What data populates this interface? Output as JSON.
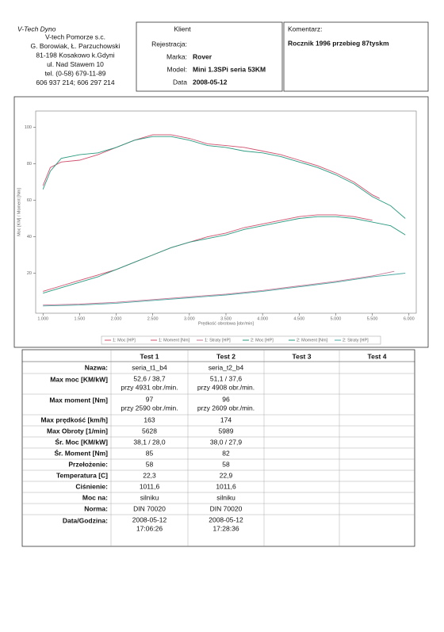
{
  "header": {
    "company": [
      "V-Tech Dyno",
      "V-tech Pomorze s.c.",
      "G. Borowiak, Ł. Parzuchowski",
      "81-198 Kosakowo k.Gdyni",
      "ul. Nad Stawem 10",
      "tel. (0-58) 679-11-89",
      "606 937 214; 606 297 214"
    ],
    "client_title": "Klient",
    "fields": [
      {
        "label": "Rejestracja:"
      },
      {
        "label": "Marka:",
        "value": "Rover"
      },
      {
        "label": "Model:",
        "value": "Mini 1.3SPi seria 53KM"
      },
      {
        "label": "Data",
        "value": "2008-05-12"
      }
    ],
    "comment_title": "Komentarz:",
    "comment": "Rocznik 1996 przebieg 87tyskm"
  },
  "chart_data": {
    "type": "line",
    "xlabel": "Prędkość obrotowa [obr/min]",
    "ylabel": "Moc [KM] / Moment [Nm]",
    "xlim": [
      900,
      6100
    ],
    "ylim": [
      -2,
      109
    ],
    "grid": false,
    "xticks": [
      {
        "value": 1000,
        "label": "1.000"
      },
      {
        "value": 1500,
        "label": "1.500"
      },
      {
        "value": 2000,
        "label": "2.000"
      },
      {
        "value": 2500,
        "label": "2.500"
      },
      {
        "value": 3000,
        "label": "3.000"
      },
      {
        "value": 3500,
        "label": "3.500"
      },
      {
        "value": 4000,
        "label": "4.000"
      },
      {
        "value": 4500,
        "label": "4.500"
      },
      {
        "value": 5000,
        "label": "5.000"
      },
      {
        "value": 5500,
        "label": "5.500"
      },
      {
        "value": 6000,
        "label": "6.000"
      }
    ],
    "yticks": [
      20,
      40,
      60,
      80,
      100
    ],
    "series": [
      {
        "name": "1: Moc [HP]",
        "color": "#d0506e",
        "x": [
          1000,
          1250,
          1500,
          1750,
          2000,
          2250,
          2500,
          2750,
          3000,
          3250,
          3500,
          3750,
          4000,
          4250,
          4500,
          4750,
          5000,
          5250,
          5500
        ],
        "values": [
          10,
          13,
          16,
          19,
          22,
          26,
          30,
          34,
          37,
          40,
          42,
          45,
          47,
          49,
          51,
          52,
          52,
          51,
          49
        ]
      },
      {
        "name": "1: Moment [Nm]",
        "color": "#d0506e",
        "x": [
          1000,
          1100,
          1250,
          1500,
          1750,
          2000,
          2250,
          2500,
          2750,
          3000,
          3250,
          3500,
          3750,
          4000,
          4250,
          4500,
          4750,
          5000,
          5250,
          5500,
          5600
        ],
        "values": [
          68,
          78,
          81,
          82,
          85,
          89,
          93,
          96,
          96,
          94,
          91,
          90,
          89,
          87,
          85,
          82,
          79,
          75,
          70,
          63,
          61
        ]
      },
      {
        "name": "1: Straty [HP]",
        "color": "#c77a9a",
        "x": [
          1000,
          1500,
          2000,
          2500,
          3000,
          3500,
          4000,
          4500,
          5000,
          5500,
          5800
        ],
        "values": [
          2.5,
          3,
          4,
          5.5,
          7,
          8.5,
          10.5,
          13,
          15.5,
          18.5,
          21
        ]
      },
      {
        "name": "2: Moc [HP]",
        "color": "#2a9a80",
        "x": [
          1000,
          1250,
          1500,
          1750,
          2000,
          2250,
          2500,
          2750,
          3000,
          3250,
          3500,
          3750,
          4000,
          4250,
          4500,
          4750,
          5000,
          5250,
          5500,
          5750,
          5950
        ],
        "values": [
          9,
          12,
          15,
          18,
          22,
          26,
          30,
          34,
          37,
          39,
          41,
          44,
          46,
          48,
          50,
          51,
          51,
          50,
          48,
          46,
          41
        ]
      },
      {
        "name": "2: Moment [Nm]",
        "color": "#2a9a80",
        "x": [
          1000,
          1100,
          1250,
          1500,
          1750,
          2000,
          2250,
          2500,
          2750,
          3000,
          3250,
          3500,
          3750,
          4000,
          4250,
          4500,
          4750,
          5000,
          5250,
          5500,
          5750,
          5950
        ],
        "values": [
          66,
          76,
          83,
          85,
          86,
          89,
          93,
          95,
          95,
          93,
          90,
          89,
          87,
          86,
          84,
          81,
          78,
          74,
          69,
          62,
          57,
          50
        ]
      },
      {
        "name": "2: Straty [HP]",
        "color": "#4aa8a0",
        "x": [
          1000,
          1500,
          2000,
          2500,
          3000,
          3500,
          4000,
          4500,
          5000,
          5500,
          5950
        ],
        "values": [
          2,
          2.5,
          3.5,
          5,
          6.5,
          8,
          10,
          12.5,
          15,
          18,
          20
        ]
      }
    ]
  },
  "table": {
    "headers": [
      "Test 1",
      "Test 2",
      "Test 3",
      "Test 4"
    ],
    "rows": [
      {
        "label": "Nazwa:",
        "values": [
          [
            "seria_t1_b4"
          ],
          [
            "seria_t2_b4"
          ]
        ]
      },
      {
        "label": "Max moc [KM/kW]",
        "values": [
          [
            "52,6 / 38,7",
            "przy 4931 obr./min."
          ],
          [
            "51,1 / 37,6",
            "przy 4908 obr./min."
          ]
        ]
      },
      {
        "label": "Max moment [Nm]",
        "values": [
          [
            "97",
            "przy 2590 obr./min."
          ],
          [
            "96",
            "przy 2609 obr./min."
          ]
        ]
      },
      {
        "label": "Max prędkość [km/h]",
        "values": [
          [
            "163"
          ],
          [
            "174"
          ]
        ]
      },
      {
        "label": "Max Obroty [1/min]",
        "values": [
          [
            "5628"
          ],
          [
            "5989"
          ]
        ]
      },
      {
        "label": "Śr. Moc [KM/kW]",
        "values": [
          [
            "38,1 / 28,0"
          ],
          [
            "38,0 / 27,9"
          ]
        ]
      },
      {
        "label": "Śr. Moment [Nm]",
        "values": [
          [
            "85"
          ],
          [
            "82"
          ]
        ]
      },
      {
        "label": "Przełożenie:",
        "values": [
          [
            "58"
          ],
          [
            "58"
          ]
        ]
      },
      {
        "label": "Temperatura [C]",
        "values": [
          [
            "22,3"
          ],
          [
            "22,9"
          ]
        ]
      },
      {
        "label": "Ciśnienie:",
        "values": [
          [
            "1011,6"
          ],
          [
            "1011,6"
          ]
        ]
      },
      {
        "label": "Moc na:",
        "values": [
          [
            "silniku"
          ],
          [
            "silniku"
          ]
        ]
      },
      {
        "label": "Norma:",
        "values": [
          [
            "DIN 70020"
          ],
          [
            "DIN 70020"
          ]
        ]
      },
      {
        "label": "Data/Godzina:",
        "values": [
          [
            "2008-05-12",
            "17:06:26"
          ],
          [
            "2008-05-12",
            "17:28:36"
          ]
        ]
      }
    ]
  }
}
